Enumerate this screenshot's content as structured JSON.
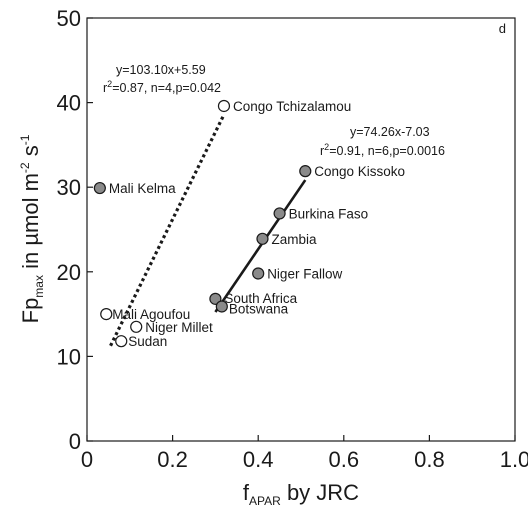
{
  "chart_data": {
    "type": "scatter",
    "panel_label": "d",
    "xlabel": {
      "base": "f",
      "sub": "APAR",
      "rest": " by JRC"
    },
    "ylabel": {
      "base": "Fp",
      "sub": "max",
      "rest": " in µmol m",
      "sup1": "-2",
      "mid": " s",
      "sup2": "-1"
    },
    "xlim": [
      0,
      1.0
    ],
    "ylim": [
      0,
      50
    ],
    "xticks": [
      0,
      0.2,
      0.4,
      0.6,
      0.8,
      1.0
    ],
    "xtick_labels": [
      "0",
      "0.2",
      "0.4",
      "0.6",
      "0.8",
      "1.0"
    ],
    "yticks": [
      0,
      10,
      20,
      30,
      40,
      50
    ],
    "ytick_labels": [
      "0",
      "10",
      "20",
      "30",
      "40",
      "50"
    ],
    "grid": false,
    "points": [
      {
        "label": "Congo Tchizalamou",
        "x": 0.32,
        "y": 39.6,
        "filled": false
      },
      {
        "label": "Mali Agoufou",
        "x": 0.045,
        "y": 15.0,
        "filled": false
      },
      {
        "label": "Niger Millet",
        "x": 0.115,
        "y": 13.5,
        "filled": false
      },
      {
        "label": "Sudan",
        "x": 0.08,
        "y": 11.8,
        "filled": false
      },
      {
        "label": "Mali Kelma",
        "x": 0.03,
        "y": 29.9,
        "filled": true
      },
      {
        "label": "Congo Kissoko",
        "x": 0.51,
        "y": 31.9,
        "filled": true
      },
      {
        "label": "Burkina Faso",
        "x": 0.45,
        "y": 26.9,
        "filled": true
      },
      {
        "label": "Zambia",
        "x": 0.41,
        "y": 23.9,
        "filled": true
      },
      {
        "label": "Niger Fallow",
        "x": 0.4,
        "y": 19.8,
        "filled": true
      },
      {
        "label": "South Africa",
        "x": 0.3,
        "y": 16.8,
        "filled": true
      },
      {
        "label": "Botswana",
        "x": 0.315,
        "y": 15.9,
        "filled": true
      }
    ],
    "regressions": [
      {
        "style": "dotted",
        "equation": "y=103.10x+5.59",
        "stats": {
          "r": "r",
          "sup": "2",
          "rest": "=0.87, n=4,p=0.042"
        },
        "x_range": [
          0.055,
          0.32
        ]
      },
      {
        "style": "solid",
        "equation": "y=74.26x-7.03",
        "stats": {
          "r": "r",
          "sup": "2",
          "rest": "=0.91, n=6,p=0.0016"
        },
        "x_range": [
          0.3,
          0.51
        ]
      }
    ]
  }
}
